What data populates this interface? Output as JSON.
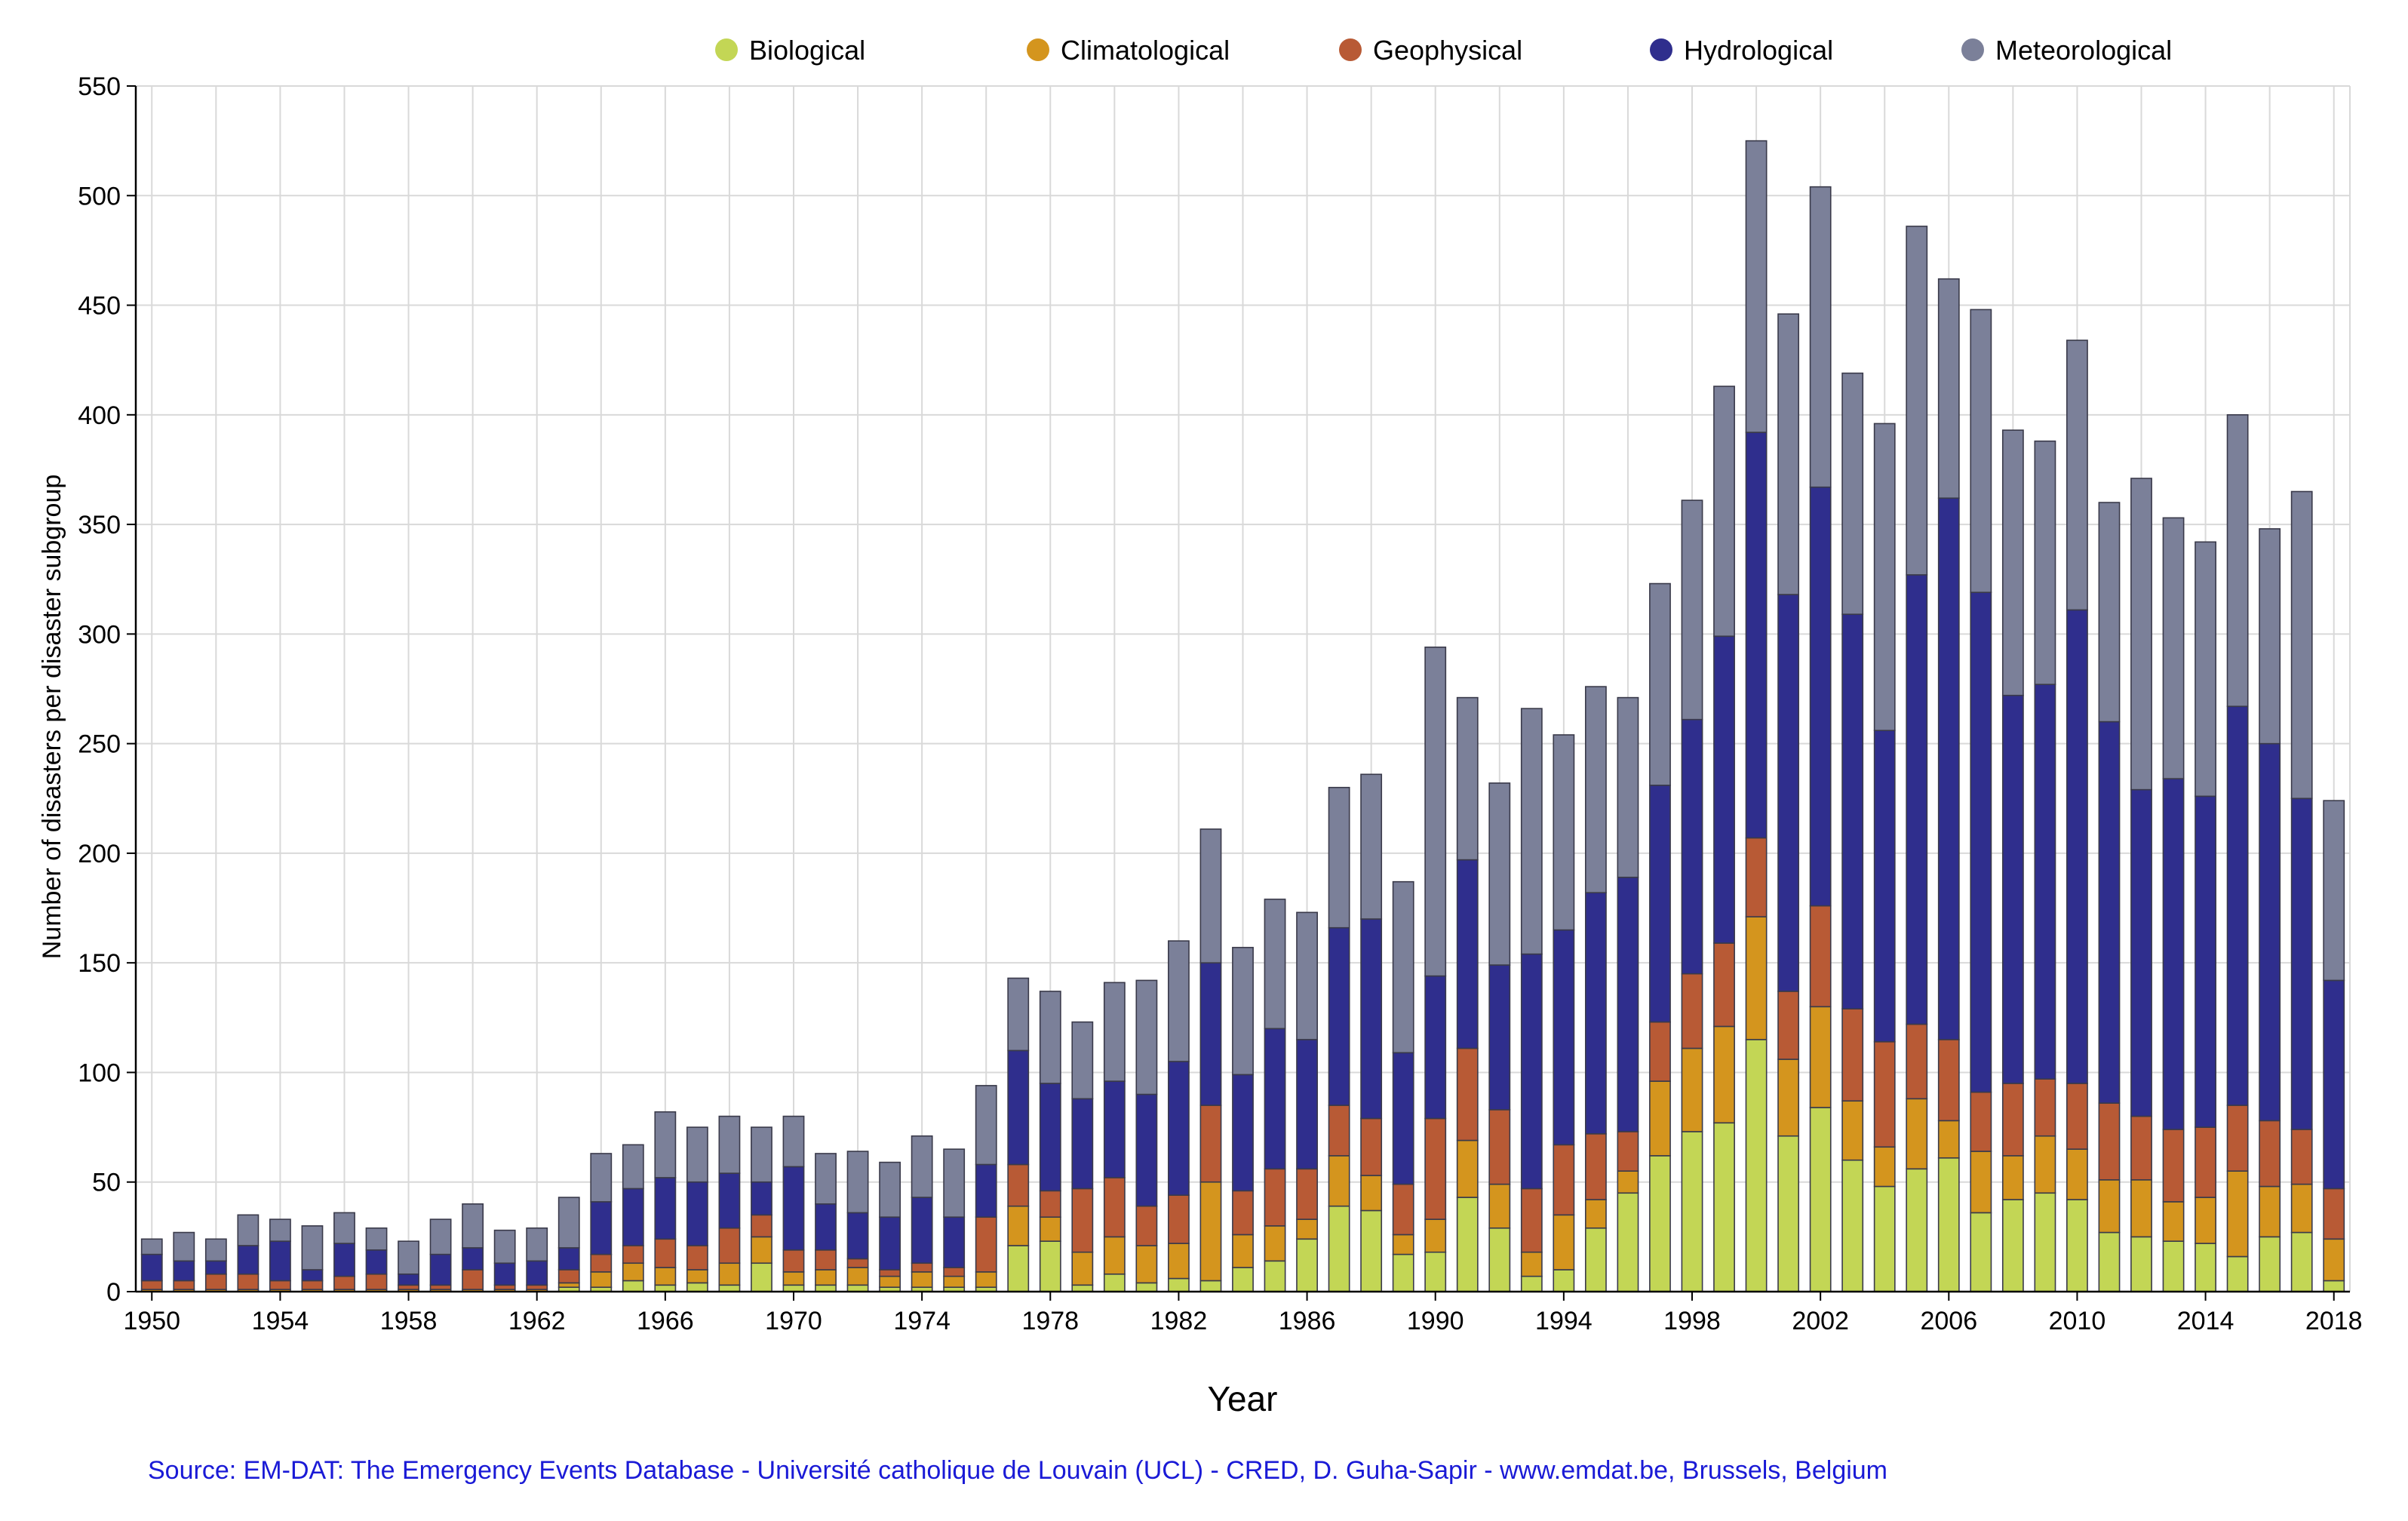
{
  "chart_data": {
    "type": "bar",
    "stacked": true,
    "title": "",
    "xlabel": "Year",
    "ylabel": "Number of disasters per  disaster subgroup",
    "ylim": [
      0,
      550
    ],
    "yticks": [
      0,
      50,
      100,
      150,
      200,
      250,
      300,
      350,
      400,
      450,
      500,
      550
    ],
    "grid": true,
    "legend_position": "top",
    "tick_years": [
      1950,
      1954,
      1958,
      1962,
      1966,
      1970,
      1974,
      1978,
      1982,
      1986,
      1990,
      1994,
      1998,
      2002,
      2006,
      2010,
      2014,
      2018
    ],
    "categories": [
      1950,
      1951,
      1952,
      1953,
      1954,
      1955,
      1956,
      1957,
      1958,
      1959,
      1960,
      1961,
      1962,
      1963,
      1964,
      1965,
      1966,
      1967,
      1968,
      1969,
      1970,
      1971,
      1972,
      1973,
      1974,
      1975,
      1976,
      1977,
      1978,
      1979,
      1980,
      1981,
      1982,
      1983,
      1984,
      1985,
      1986,
      1987,
      1988,
      1989,
      1990,
      1991,
      1992,
      1993,
      1994,
      1995,
      1996,
      1997,
      1998,
      1999,
      2000,
      2001,
      2002,
      2003,
      2004,
      2005,
      2006,
      2007,
      2008,
      2009,
      2010,
      2011,
      2012,
      2013,
      2014,
      2015,
      2016,
      2017,
      2018
    ],
    "series": [
      {
        "name": "Biological",
        "color": "#c3d655",
        "values": [
          0,
          0,
          0,
          0,
          0,
          0,
          0,
          0,
          0,
          0,
          0,
          0,
          0,
          2,
          2,
          5,
          3,
          4,
          3,
          13,
          3,
          3,
          3,
          2,
          2,
          2,
          2,
          21,
          23,
          3,
          8,
          4,
          6,
          5,
          11,
          14,
          24,
          39,
          37,
          17,
          18,
          43,
          29,
          7,
          10,
          29,
          45,
          62,
          73,
          77,
          115,
          71,
          84,
          60,
          48,
          56,
          61,
          36,
          42,
          45,
          42,
          27,
          25,
          23,
          22,
          16,
          25,
          27,
          5
        ]
      },
      {
        "name": "Climatological",
        "color": "#d4951e",
        "values": [
          1,
          1,
          1,
          1,
          1,
          1,
          1,
          1,
          1,
          1,
          1,
          1,
          1,
          2,
          7,
          8,
          8,
          6,
          10,
          12,
          6,
          7,
          8,
          5,
          7,
          5,
          7,
          18,
          11,
          15,
          17,
          17,
          16,
          45,
          15,
          16,
          9,
          23,
          16,
          9,
          15,
          26,
          20,
          11,
          25,
          13,
          10,
          34,
          38,
          44,
          56,
          35,
          46,
          27,
          18,
          32,
          17,
          28,
          20,
          26,
          23,
          24,
          26,
          18,
          21,
          39,
          23,
          22,
          19
        ]
      },
      {
        "name": "Geophysical",
        "color": "#b85a35",
        "values": [
          4,
          4,
          7,
          7,
          4,
          4,
          6,
          7,
          2,
          2,
          9,
          2,
          2,
          6,
          8,
          8,
          13,
          11,
          16,
          10,
          10,
          9,
          4,
          3,
          4,
          4,
          25,
          19,
          12,
          29,
          27,
          18,
          22,
          35,
          20,
          26,
          23,
          23,
          26,
          23,
          46,
          42,
          34,
          29,
          32,
          30,
          18,
          27,
          34,
          38,
          36,
          31,
          46,
          42,
          48,
          34,
          37,
          27,
          33,
          26,
          30,
          35,
          29,
          33,
          32,
          30,
          30,
          25,
          23
        ]
      },
      {
        "name": "Hydrological",
        "color": "#2f2e8d",
        "values": [
          12,
          9,
          6,
          13,
          18,
          5,
          15,
          11,
          5,
          14,
          10,
          10,
          11,
          10,
          24,
          26,
          28,
          29,
          25,
          15,
          38,
          21,
          21,
          24,
          30,
          23,
          24,
          52,
          49,
          41,
          44,
          51,
          61,
          65,
          53,
          64,
          59,
          81,
          91,
          60,
          65,
          86,
          66,
          107,
          98,
          110,
          116,
          108,
          116,
          140,
          185,
          181,
          191,
          180,
          142,
          205,
          247,
          228,
          177,
          180,
          216,
          174,
          149,
          160,
          151,
          182,
          172,
          151,
          95
        ]
      },
      {
        "name": "Meteorological",
        "color": "#7b8099",
        "values": [
          7,
          13,
          10,
          14,
          10,
          20,
          14,
          10,
          15,
          16,
          20,
          15,
          15,
          23,
          22,
          20,
          30,
          25,
          26,
          25,
          23,
          23,
          28,
          25,
          28,
          31,
          36,
          33,
          42,
          35,
          45,
          52,
          55,
          61,
          58,
          59,
          58,
          64,
          66,
          78,
          150,
          74,
          83,
          112,
          89,
          94,
          82,
          92,
          100,
          114,
          133,
          128,
          137,
          110,
          140,
          159,
          100,
          129,
          121,
          111,
          123,
          100,
          142,
          119,
          116,
          133,
          98,
          140,
          82
        ]
      }
    ]
  },
  "source_note": "Source: EM-DAT: The Emergency Events Database - Université catholique de Louvain (UCL) - CRED, D. Guha-Sapir - www.emdat.be, Brussels, Belgium"
}
